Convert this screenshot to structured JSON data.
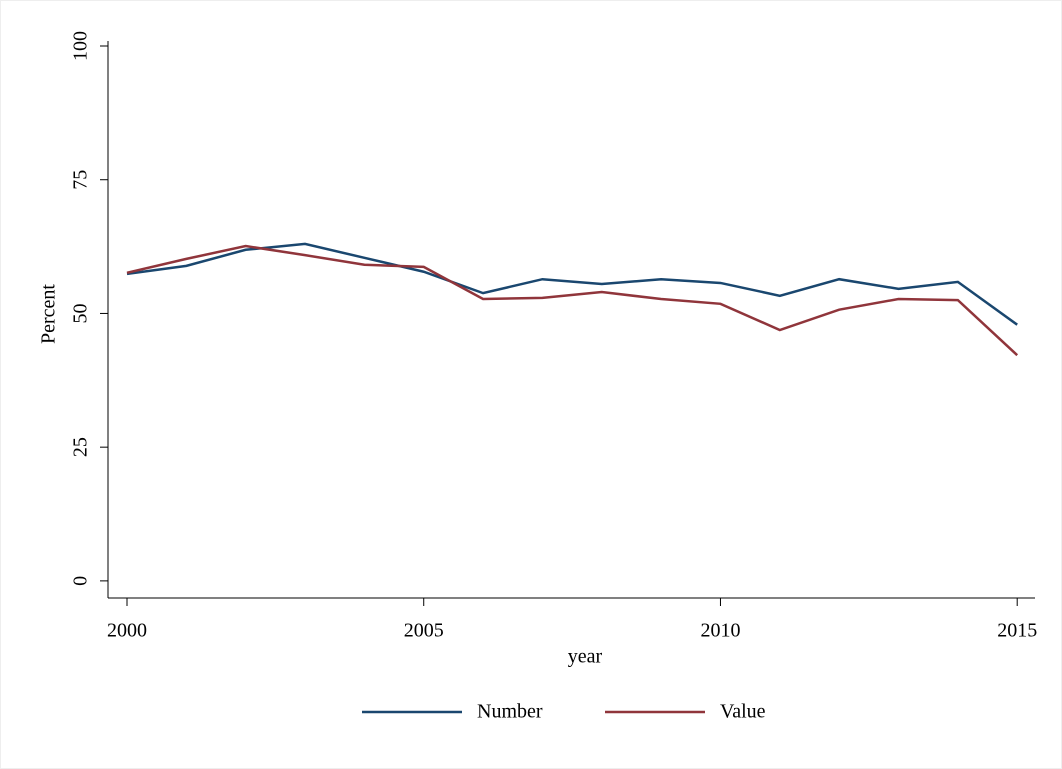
{
  "chart_data": {
    "type": "line",
    "x": [
      2000,
      2001,
      2002,
      2003,
      2004,
      2005,
      2006,
      2007,
      2008,
      2009,
      2010,
      2011,
      2012,
      2013,
      2014,
      2015
    ],
    "series": [
      {
        "name": "Number",
        "color": "#1a476f",
        "values": [
          57.4,
          58.9,
          61.9,
          63.0,
          60.4,
          57.8,
          53.8,
          56.4,
          55.5,
          56.4,
          55.7,
          53.3,
          56.4,
          54.6,
          55.9,
          47.9
        ]
      },
      {
        "name": "Value",
        "color": "#90353b",
        "values": [
          57.6,
          60.2,
          62.6,
          60.9,
          59.1,
          58.7,
          52.7,
          52.9,
          54.0,
          52.7,
          51.8,
          46.9,
          50.7,
          52.7,
          52.5,
          42.2
        ]
      }
    ],
    "xlabel": "year",
    "ylabel": "Percent",
    "xlim": [
      1999.68,
      2015.3
    ],
    "xticks": [
      2000,
      2005,
      2010,
      2015
    ],
    "ylim": [
      -3.2,
      100
    ],
    "yticks": [
      0,
      25,
      50,
      75,
      100
    ],
    "grid": false,
    "legend": "bottom"
  }
}
